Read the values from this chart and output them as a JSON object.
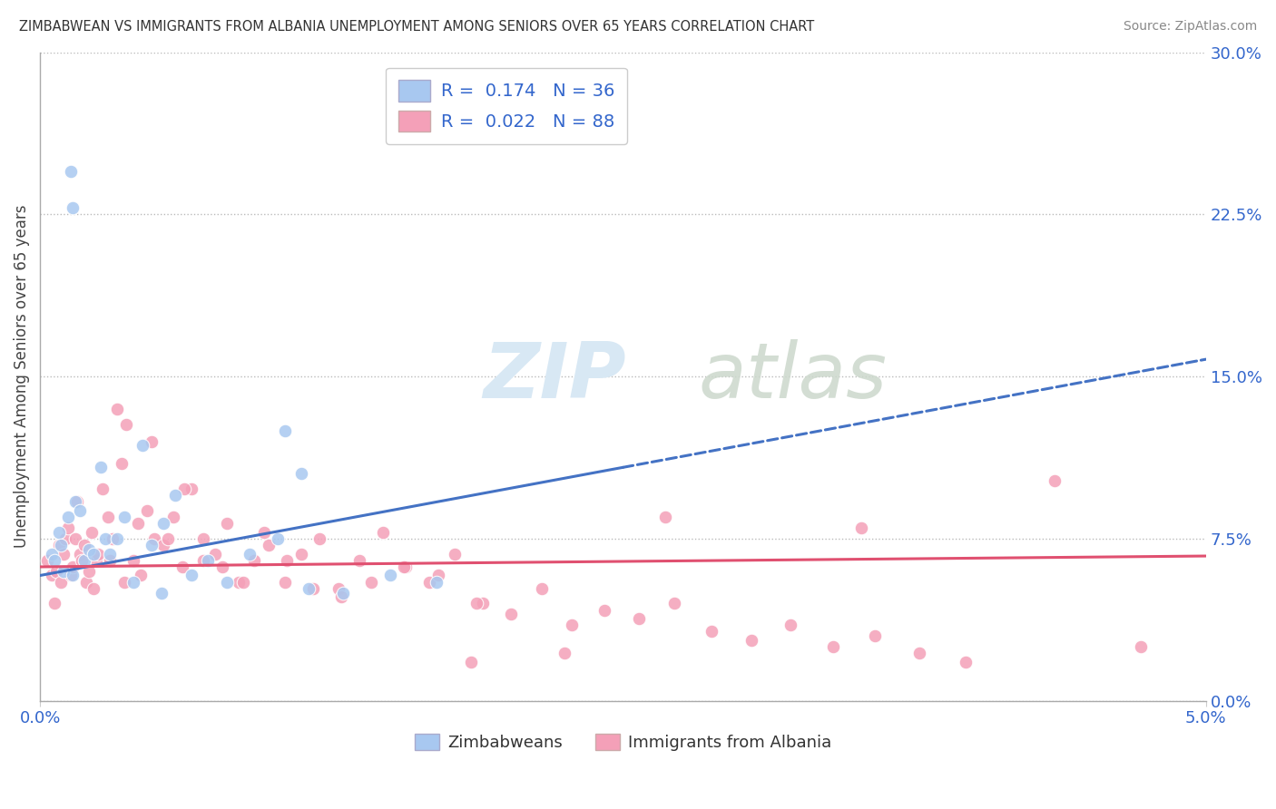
{
  "title": "ZIMBABWEAN VS IMMIGRANTS FROM ALBANIA UNEMPLOYMENT AMONG SENIORS OVER 65 YEARS CORRELATION CHART",
  "source": "Source: ZipAtlas.com",
  "ylabel": "Unemployment Among Seniors over 65 years",
  "legend_label_1": "Zimbabweans",
  "legend_label_2": "Immigrants from Albania",
  "r1": 0.174,
  "n1": 36,
  "r2": 0.022,
  "n2": 88,
  "color_blue": "#a8c8f0",
  "color_pink": "#f4a0b8",
  "color_blue_line": "#4472c4",
  "color_pink_line": "#e05070",
  "background_color": "#ffffff",
  "xlim": [
    0.0,
    5.0
  ],
  "ylim": [
    0.0,
    30.0
  ],
  "ytick_values": [
    0.0,
    7.5,
    15.0,
    22.5,
    30.0
  ],
  "blue_line_x0": 0.0,
  "blue_line_y0": 5.8,
  "blue_line_x1": 2.5,
  "blue_line_y1": 10.8,
  "blue_dash_x0": 2.5,
  "blue_dash_y0": 10.8,
  "blue_dash_x1": 5.0,
  "blue_dash_y1": 15.8,
  "pink_line_x0": 0.0,
  "pink_line_y0": 6.2,
  "pink_line_x1": 5.0,
  "pink_line_y1": 6.7,
  "blue_x": [
    0.05,
    0.06,
    0.08,
    0.09,
    0.1,
    0.12,
    0.14,
    0.15,
    0.17,
    0.19,
    0.21,
    0.23,
    0.26,
    0.28,
    0.3,
    0.33,
    0.36,
    0.4,
    0.44,
    0.48,
    0.53,
    0.58,
    0.65,
    0.72,
    0.8,
    0.9,
    1.02,
    1.15,
    1.3,
    1.5,
    1.7,
    0.13,
    0.14,
    1.05,
    1.12,
    0.52
  ],
  "blue_y": [
    6.8,
    6.5,
    7.8,
    7.2,
    6.0,
    8.5,
    5.8,
    9.2,
    8.8,
    6.5,
    7.0,
    6.8,
    10.8,
    7.5,
    6.8,
    7.5,
    8.5,
    5.5,
    11.8,
    7.2,
    8.2,
    9.5,
    5.8,
    6.5,
    5.5,
    6.8,
    7.5,
    5.2,
    5.0,
    5.8,
    5.5,
    24.5,
    22.8,
    12.5,
    10.5,
    5.0
  ],
  "pink_x": [
    0.03,
    0.05,
    0.06,
    0.07,
    0.08,
    0.09,
    0.1,
    0.11,
    0.12,
    0.13,
    0.14,
    0.15,
    0.16,
    0.17,
    0.18,
    0.19,
    0.2,
    0.21,
    0.22,
    0.23,
    0.24,
    0.25,
    0.27,
    0.29,
    0.31,
    0.33,
    0.35,
    0.37,
    0.4,
    0.43,
    0.46,
    0.49,
    0.53,
    0.57,
    0.61,
    0.65,
    0.7,
    0.75,
    0.8,
    0.85,
    0.92,
    0.98,
    1.05,
    1.12,
    1.2,
    1.28,
    1.37,
    1.47,
    1.57,
    1.67,
    1.78,
    1.9,
    2.02,
    2.15,
    2.28,
    2.42,
    2.57,
    2.72,
    2.88,
    3.05,
    3.22,
    3.4,
    3.58,
    3.77,
    3.97,
    0.3,
    0.36,
    0.42,
    0.48,
    0.55,
    0.62,
    0.7,
    0.78,
    0.87,
    0.96,
    1.06,
    1.17,
    1.29,
    1.42,
    1.56,
    1.71,
    1.87,
    4.35,
    4.72,
    3.52,
    2.68,
    2.25,
    1.85
  ],
  "pink_y": [
    6.5,
    5.8,
    4.5,
    6.0,
    7.2,
    5.5,
    6.8,
    7.5,
    8.0,
    5.8,
    6.2,
    7.5,
    9.2,
    6.8,
    6.5,
    7.2,
    5.5,
    6.0,
    7.8,
    5.2,
    6.5,
    6.8,
    9.8,
    8.5,
    7.5,
    13.5,
    11.0,
    12.8,
    6.5,
    5.8,
    8.8,
    7.5,
    7.2,
    8.5,
    6.2,
    9.8,
    7.5,
    6.8,
    8.2,
    5.5,
    6.5,
    7.2,
    5.5,
    6.8,
    7.5,
    5.2,
    6.5,
    7.8,
    6.2,
    5.5,
    6.8,
    4.5,
    4.0,
    5.2,
    3.5,
    4.2,
    3.8,
    4.5,
    3.2,
    2.8,
    3.5,
    2.5,
    3.0,
    2.2,
    1.8,
    6.5,
    5.5,
    8.2,
    12.0,
    7.5,
    9.8,
    6.5,
    6.2,
    5.5,
    7.8,
    6.5,
    5.2,
    4.8,
    5.5,
    6.2,
    5.8,
    4.5,
    10.2,
    2.5,
    8.0,
    8.5,
    2.2,
    1.8
  ]
}
